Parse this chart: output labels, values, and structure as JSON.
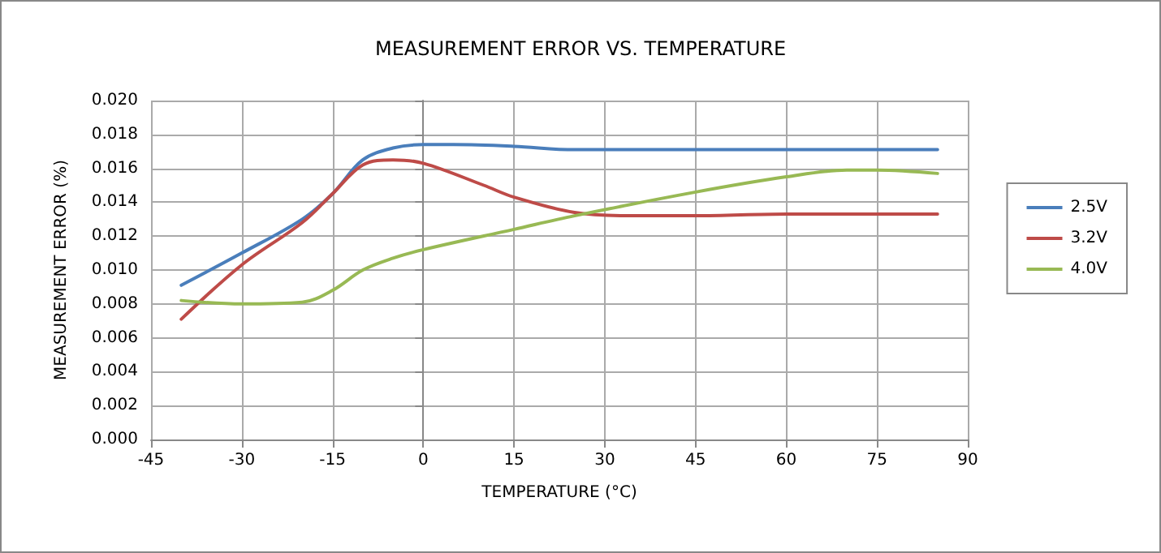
{
  "chart_data": {
    "type": "line",
    "title": "MEASUREMENT ERROR VS. TEMPERATURE",
    "xlabel": "TEMPERATURE (°C)",
    "ylabel": "MEASUREMENT ERROR (%)",
    "xlim": [
      -45,
      90
    ],
    "xticks": [
      -45,
      -30,
      -15,
      0,
      15,
      30,
      45,
      60,
      75,
      90
    ],
    "ylim": [
      0,
      0.02
    ],
    "yticks": [
      {
        "value": 0,
        "label": "0.000"
      },
      {
        "value": 0.002,
        "label": "0.002"
      },
      {
        "value": 0.004,
        "label": "0.004"
      },
      {
        "value": 0.006,
        "label": "0.006"
      },
      {
        "value": 0.008,
        "label": "0.008"
      },
      {
        "value": 0.01,
        "label": "0.010"
      },
      {
        "value": 0.012,
        "label": "0.012"
      },
      {
        "value": 0.014,
        "label": "0.014"
      },
      {
        "value": 0.016,
        "label": "0.016"
      },
      {
        "value": 0.018,
        "label": "0.018"
      },
      {
        "value": 0.02,
        "label": "0.020"
      }
    ],
    "grid": true,
    "legend": "right",
    "marker": "none",
    "line_style": "solid",
    "series": [
      {
        "name": "2.5V",
        "color": "#4a7ebb",
        "x": [
          -40,
          -30,
          -20,
          -15,
          -10,
          -5,
          0,
          5,
          15,
          25,
          85
        ],
        "values": [
          0.0091,
          0.011,
          0.013,
          0.0145,
          0.0165,
          0.0172,
          0.0174,
          0.0174,
          0.0173,
          0.0171,
          0.0171
        ]
      },
      {
        "name": "3.2V",
        "color": "#be4b48",
        "x": [
          -40,
          -30,
          -20,
          -15,
          -10,
          -5,
          0,
          10,
          15,
          25,
          35,
          45,
          60,
          85
        ],
        "values": [
          0.0071,
          0.0103,
          0.0128,
          0.0145,
          0.0162,
          0.0165,
          0.0163,
          0.015,
          0.0143,
          0.0134,
          0.0132,
          0.0132,
          0.0133,
          0.0133
        ]
      },
      {
        "name": "4.0V",
        "color": "#98b954",
        "x": [
          -40,
          -30,
          -20,
          -15,
          -10,
          -5,
          0,
          15,
          25,
          45,
          60,
          70,
          75,
          85
        ],
        "values": [
          0.0082,
          0.008,
          0.0081,
          0.0088,
          0.01,
          0.0107,
          0.0112,
          0.0124,
          0.0132,
          0.0146,
          0.0155,
          0.0159,
          0.0159,
          0.0157
        ]
      }
    ]
  }
}
